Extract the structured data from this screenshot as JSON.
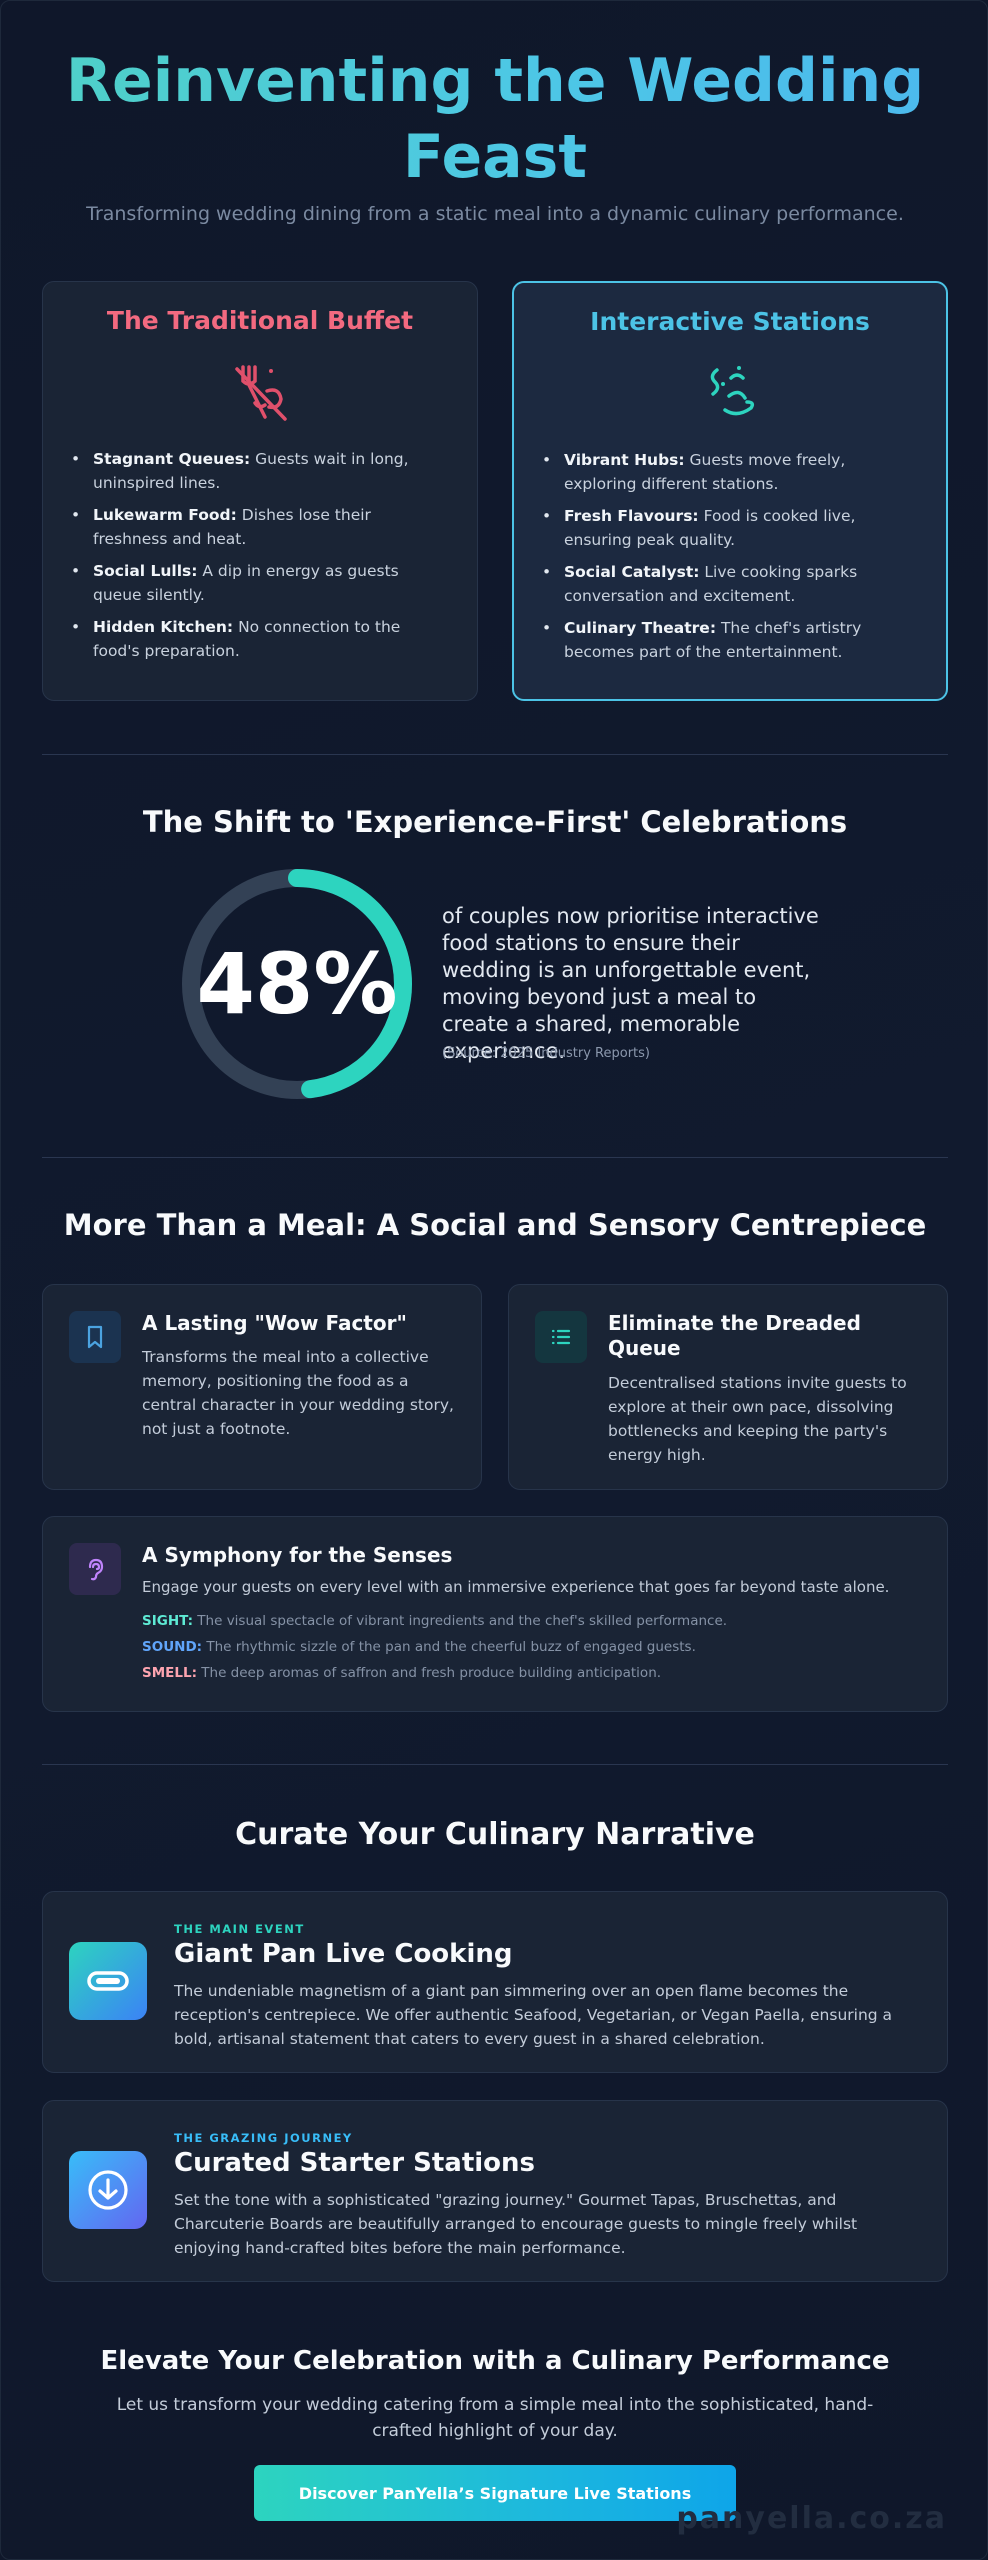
{
  "hero": {
    "title": "Reinventing the Wedding Feast",
    "subtitle": "Transforming wedding dining from a static meal into a dynamic culinary performance."
  },
  "comparison": {
    "traditional": {
      "title": "The Traditional Buffet",
      "icon": "crossed-out-cutlery-icon",
      "items": [
        {
          "label": "Stagnant Queues:",
          "text": "Guests wait in long, uninspired lines."
        },
        {
          "label": "Lukewarm Food:",
          "text": "Dishes lose their freshness and heat."
        },
        {
          "label": "Social Lulls:",
          "text": "A dip in energy as guests queue silently."
        },
        {
          "label": "Hidden Kitchen:",
          "text": "No connection to the food's preparation."
        }
      ]
    },
    "interactive": {
      "title": "Interactive Stations",
      "icon": "sizzling-food-icon",
      "items": [
        {
          "label": "Vibrant Hubs:",
          "text": "Guests move freely, exploring different stations."
        },
        {
          "label": "Fresh Flavours:",
          "text": "Food is cooked live, ensuring peak quality."
        },
        {
          "label": "Social Catalyst:",
          "text": "Live cooking sparks conversation and excitement."
        },
        {
          "label": "Culinary Theatre:",
          "text": "The chef's artistry becomes part of the entertainment."
        }
      ]
    }
  },
  "shift": {
    "title": "The Shift to 'Experience-First' Celebrations",
    "stat_value": "48%",
    "stat_fraction": 0.48,
    "description": "of couples now prioritise interactive food stations to ensure their wedding is an unforgettable event, moving beyond just a meal to create a shared, memorable experience.",
    "source": "(Source: 2025 Industry Reports)"
  },
  "centrepiece": {
    "title": "More Than a Meal: A Social and Sensory Centrepiece",
    "cards": [
      {
        "icon": "bookmark-icon",
        "title": "A Lasting \"Wow Factor\"",
        "text": "Transforms the meal into a collective memory, positioning the food as a central character in your wedding story, not just a footnote."
      },
      {
        "icon": "list-icon",
        "title": "Eliminate the Dreaded Queue",
        "text": "Decentralised stations invite guests to explore at their own pace, dissolving bottlenecks and keeping the party's energy high."
      }
    ],
    "senses": {
      "icon": "ear-icon",
      "title": "A Symphony for the Senses",
      "intro": "Engage your guests on every level with an immersive experience that goes far beyond taste alone.",
      "items": [
        {
          "label": "SIGHT:",
          "text": "The visual spectacle of vibrant ingredients and the chef's skilled performance.",
          "color": "#5eead4"
        },
        {
          "label": "SOUND:",
          "text": "The rhythmic sizzle of the pan and the cheerful buzz of engaged guests.",
          "color": "#60a5fa"
        },
        {
          "label": "SMELL:",
          "text": "The deep aromas of saffron and fresh produce building anticipation.",
          "color": "#fda4af"
        }
      ]
    }
  },
  "narrative": {
    "title": "Curate Your Culinary Narrative",
    "items": [
      {
        "icon": "paella-pan-icon",
        "eyebrow": "THE MAIN EVENT",
        "eyebrow_color": "#2dd4bf",
        "title": "Giant Pan Live Cooking",
        "text": "The undeniable magnetism of a giant pan simmering over an open flame becomes the reception's centrepiece. We offer authentic Seafood, Vegetarian, or Vegan Paella, ensuring a bold, artisanal statement that caters to every guest in a shared celebration."
      },
      {
        "icon": "download-circle-icon",
        "eyebrow": "THE GRAZING JOURNEY",
        "eyebrow_color": "#38bdf8",
        "title": "Curated Starter Stations",
        "text": "Set the tone with a sophisticated \"grazing journey.\" Gourmet Tapas, Bruschettas, and Charcuterie Boards are beautifully arranged to encourage guests to mingle freely whilst enjoying hand-crafted bites before the main performance."
      }
    ]
  },
  "cta": {
    "title": "Elevate Your Celebration with a Culinary Performance",
    "text": "Let us transform your wedding catering from a simple meal into the sophisticated, hand-crafted highlight of your day.",
    "button_label": "Discover PanYella’s Signature Live Stations"
  },
  "watermark": "panyella.co.za",
  "colors": {
    "accent_teal": "#2dd4bf",
    "accent_blue": "#4cc3e6",
    "accent_red": "#f36a80",
    "background": "#0f172a",
    "ring_track": "#334155"
  }
}
